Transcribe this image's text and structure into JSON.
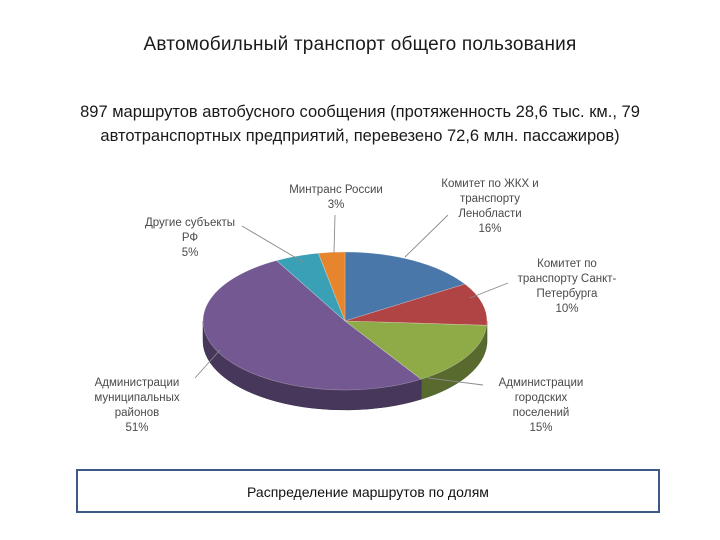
{
  "slide": {
    "title": "Автомобильный транспорт общего пользования",
    "subtitle": "897 маршрутов автобусного сообщения (протяженность 28,6 тыс. км., 79 автотранспортных предприятий, перевезено 72,6 млн. пассажиров)",
    "caption": "Распределение маршрутов по долям"
  },
  "chart_data": {
    "type": "pie",
    "title": "",
    "style": "3d-pie",
    "legend": "none",
    "series": [
      {
        "name": "Комитет по ЖКХ и транспорту Ленобласти",
        "label_lines": [
          "Комитет по ЖКХ и",
          "транспорту",
          "Ленобласти"
        ],
        "value": 16,
        "value_label": "16%",
        "color": "#4a77aa"
      },
      {
        "name": "Комитет по транспорту Санкт-Петербурга",
        "label_lines": [
          "Комитет по",
          "транспорту Санкт-",
          "Петербурга"
        ],
        "value": 10,
        "value_label": "10%",
        "color": "#b04444"
      },
      {
        "name": "Администрации городских поселений",
        "label_lines": [
          "Администрации",
          "городских",
          "поселений"
        ],
        "value": 15,
        "value_label": "15%",
        "color": "#8eab48"
      },
      {
        "name": "Администрации муниципальных районов",
        "label_lines": [
          "Администрации",
          "муниципальных",
          "районов"
        ],
        "value": 51,
        "value_label": "51%",
        "color": "#735891"
      },
      {
        "name": "Другие субъекты РФ",
        "label_lines": [
          "Другие субъекты",
          "РФ"
        ],
        "value": 5,
        "value_label": "5%",
        "color": "#3aa0b5"
      },
      {
        "name": "Минтранс России",
        "label_lines": [
          "Минтранс России"
        ],
        "value": 3,
        "value_label": "3%",
        "color": "#e6852e"
      }
    ]
  }
}
